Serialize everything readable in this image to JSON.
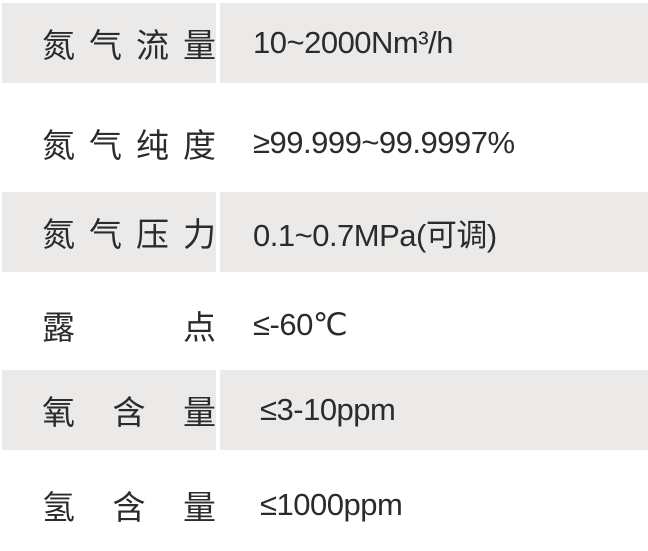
{
  "rows": [
    {
      "label": [
        "氮",
        "气",
        "流",
        "量"
      ],
      "value": "10~2000Nm³/h",
      "shaded": true
    },
    {
      "label": [
        "氮",
        "气",
        "纯",
        "度"
      ],
      "value": "≥99.999~99.9997%",
      "shaded": false
    },
    {
      "label": [
        "氮",
        "气",
        "压",
        "力"
      ],
      "value": "0.1~0.7MPa(可调)",
      "shaded": true
    },
    {
      "label": [
        "露",
        "点"
      ],
      "value": "≤-60℃",
      "shaded": false
    },
    {
      "label": [
        "氧",
        "含",
        "量"
      ],
      "value": "≤3-10ppm",
      "shaded": true
    },
    {
      "label": [
        "氢",
        "含",
        "量"
      ],
      "value": "≤1000ppm",
      "shaded": false
    }
  ],
  "colors": {
    "shade": "#ebeae9",
    "text": "#2b2b2b"
  }
}
